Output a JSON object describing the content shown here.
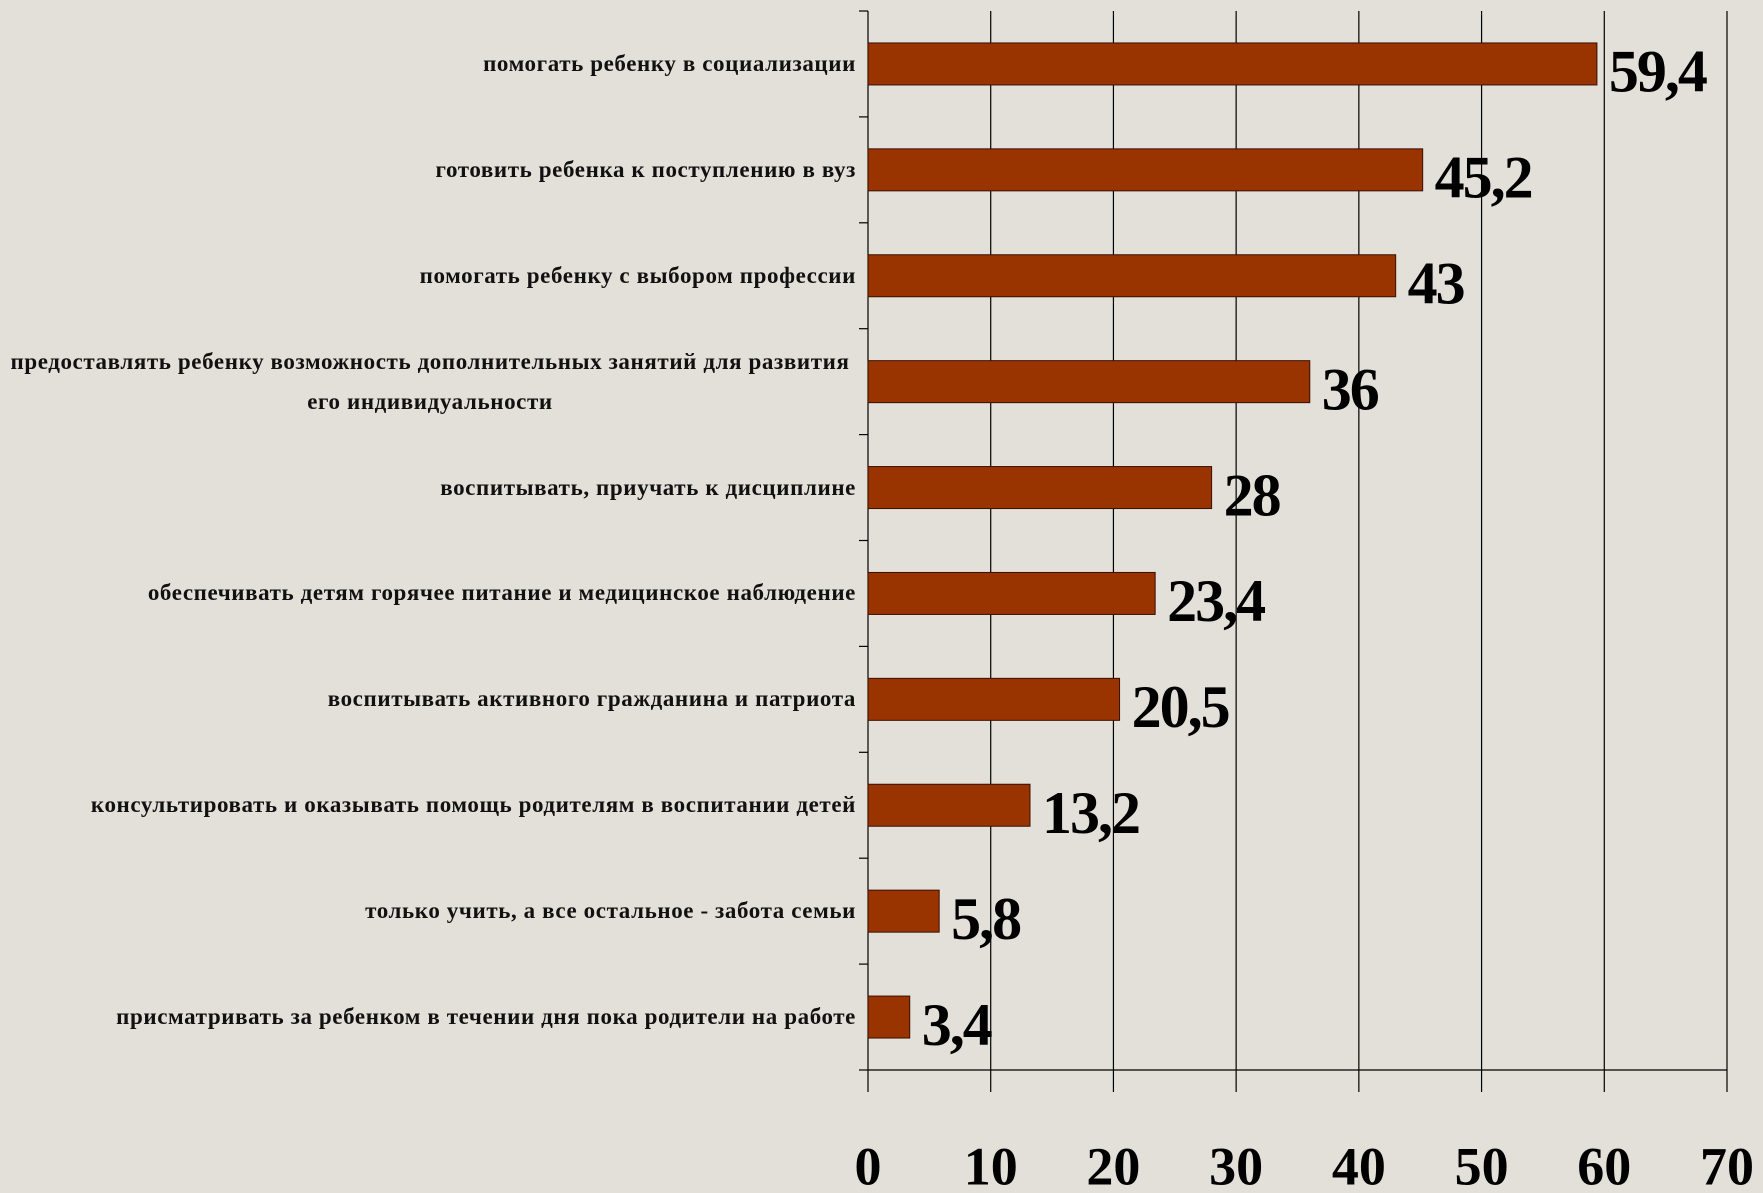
{
  "chart_data": {
    "type": "bar",
    "orientation": "horizontal",
    "categories": [
      "помогать ребенку в социализации",
      "готовить ребенка к поступлению в вуз",
      "помогать ребенку с выбором профессии",
      "предоставлять ребенку возможность дополнительных занятий для развития его индивидуальности",
      "воспитывать, приучать к дисциплине",
      "обеспечивать детям горячее питание и медицинское наблюдение",
      "воспитывать активного гражданина и патриота",
      "консультировать и оказывать помощь родителям в воспитании детей",
      "только учить, а все остальное - забота семьи",
      "присматривать за ребенком в течении дня пока родители на работе"
    ],
    "values": [
      59.4,
      45.2,
      43,
      36,
      28,
      23.4,
      20.5,
      13.2,
      5.8,
      3.4
    ],
    "value_labels": [
      "59,4",
      "45,2",
      "43",
      "36",
      "28",
      "23,4",
      "20,5",
      "13,2",
      "5,8",
      "3,4"
    ],
    "color": "#993300",
    "xlim": [
      0,
      70
    ],
    "xticks": [
      0,
      10,
      20,
      30,
      40,
      50,
      60,
      70
    ],
    "grid": true
  }
}
